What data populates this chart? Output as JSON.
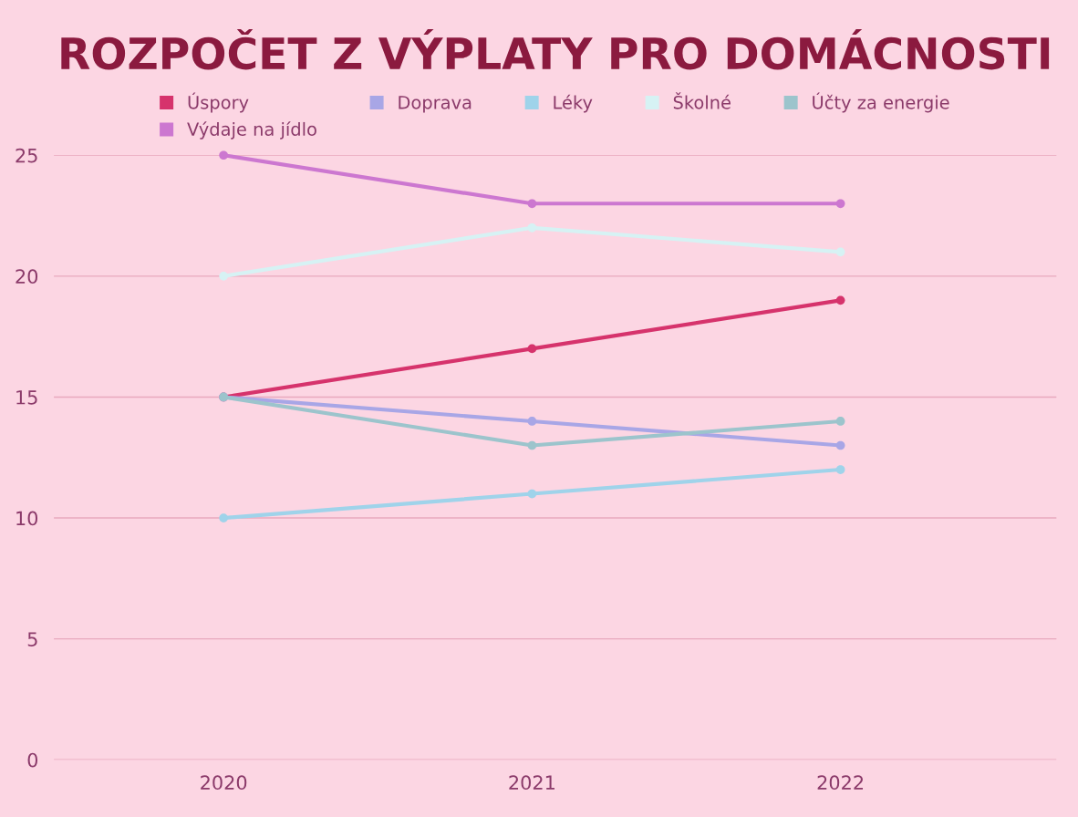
{
  "chart_data": {
    "type": "line",
    "title": "ROZPOČET Z VÝPLATY PRO DOMÁCNOSTI",
    "categories": [
      "2020",
      "2021",
      "2022"
    ],
    "series": [
      {
        "name": "Úspory",
        "color": "#d6336c",
        "values": [
          15,
          17,
          19
        ]
      },
      {
        "name": "Výdaje na jídlo",
        "color": "#cc77d0",
        "values": [
          25,
          23,
          23
        ]
      },
      {
        "name": "Doprava",
        "color": "#a8a6e6",
        "values": [
          15,
          14,
          13
        ]
      },
      {
        "name": "Léky",
        "color": "#9fd3ea",
        "values": [
          10,
          11,
          12
        ]
      },
      {
        "name": "Školné",
        "color": "#d6f2f4",
        "values": [
          20,
          22,
          21
        ]
      },
      {
        "name": "Účty za energie",
        "color": "#9cc4cc",
        "values": [
          15,
          13,
          14
        ]
      }
    ],
    "ylim": [
      0,
      25
    ],
    "yticks": [
      0,
      5,
      10,
      15,
      20,
      25
    ],
    "grid": "y",
    "legend": "top",
    "marker": "circle",
    "line_style": "solid"
  }
}
